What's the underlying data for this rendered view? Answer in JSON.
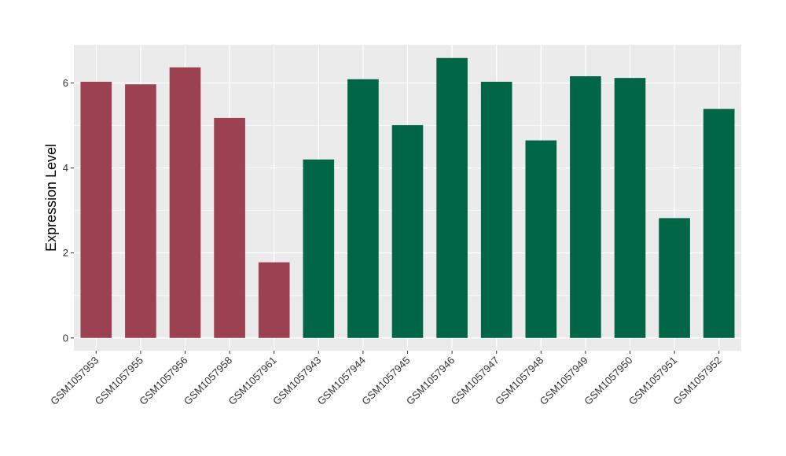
{
  "chart_data": {
    "type": "bar",
    "title": "",
    "xlabel": "",
    "ylabel": "Expression Level",
    "ylim": [
      -0.3,
      6.9
    ],
    "y_ticks": [
      0,
      2,
      4,
      6
    ],
    "grid": true,
    "legend": "none",
    "categories": [
      "GSM1057953",
      "GSM1057955",
      "GSM1057956",
      "GSM1057958",
      "GSM1057961",
      "GSM1057943",
      "GSM1057944",
      "GSM1057945",
      "GSM1057946",
      "GSM1057947",
      "GSM1057948",
      "GSM1057949",
      "GSM1057950",
      "GSM1057951",
      "GSM1057952"
    ],
    "values": [
      6.03,
      5.97,
      6.37,
      5.18,
      1.78,
      4.2,
      6.09,
      5.01,
      6.59,
      6.03,
      4.65,
      6.16,
      6.12,
      2.82,
      5.39
    ],
    "bar_colors": [
      "#9b4150",
      "#9b4150",
      "#9b4150",
      "#9b4150",
      "#9b4150",
      "#006646",
      "#006646",
      "#006646",
      "#006646",
      "#006646",
      "#006646",
      "#006646",
      "#006646",
      "#006646",
      "#006646"
    ]
  },
  "style": {
    "panel_background": "#ebebeb",
    "grid_color": "#ffffff"
  }
}
